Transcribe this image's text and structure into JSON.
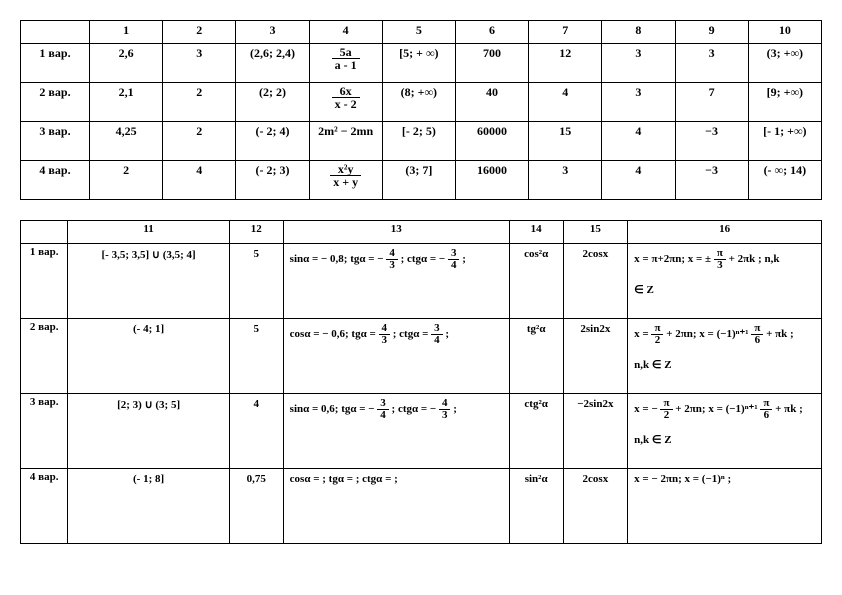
{
  "table1": {
    "headers": [
      "",
      "1",
      "2",
      "3",
      "4",
      "5",
      "6",
      "7",
      "8",
      "9",
      "10"
    ],
    "rows": [
      {
        "label": "1 вар.",
        "c1": "2,6",
        "c2": "3",
        "c3": "(2,6; 2,4)",
        "c4_num": "5a",
        "c4_den": "a - 1",
        "c5": "[5; + ∞)",
        "c6": "700",
        "c7": "12",
        "c8": "3",
        "c9": "3",
        "c10": "(3; +∞)"
      },
      {
        "label": "2 вар.",
        "c1": "2,1",
        "c2": "2",
        "c3": "(2; 2)",
        "c4_num": "6x",
        "c4_den": "x - 2",
        "c5": "(8; +∞)",
        "c6": "40",
        "c7": "4",
        "c8": "3",
        "c9": "7",
        "c10": "[9; +∞)"
      },
      {
        "label": "3 вар.",
        "c1": "4,25",
        "c2": "2",
        "c3": "(- 2; 4)",
        "c4_plain": "2m² − 2mn",
        "c5": "[- 2; 5)",
        "c6": "60000",
        "c7": "15",
        "c8": "4",
        "c9": "−3",
        "c10": "[- 1; +∞)"
      },
      {
        "label": "4 вар.",
        "c1": "2",
        "c2": "4",
        "c3": "(- 2; 3)",
        "c4_num": "x²y",
        "c4_den": "x + y",
        "c5": "(3; 7]",
        "c6": "16000",
        "c7": "3",
        "c8": "4",
        "c9": "−3",
        "c10": "(- ∞; 14)"
      }
    ]
  },
  "table2": {
    "headers": [
      "",
      "11",
      "12",
      "13",
      "14",
      "15",
      "16"
    ],
    "rows": [
      {
        "label": "1 вар.",
        "c11": "[- 3,5; 3,5] ∪ (3,5; 4]",
        "c12": "5",
        "c13_a": "sinα = − 0,8",
        "c13_b": "; tgα =",
        "c13_bn": "4",
        "c13_bd": "3",
        "c13_c": "; ctgα =",
        "c13_cn": "3",
        "c13_cd": "4",
        "c13_sign_b": "− ",
        "c13_sign_c": "− ",
        "c14": "cos²α",
        "c15": "2cosx",
        "c16_a": "x = π+2πn; x = ±",
        "c16_n": "π",
        "c16_d": "3",
        "c16_suf": " + 2πk",
        "c16_tail": "; n,k",
        "c16_z": "∈ Z"
      },
      {
        "label": "2 вар.",
        "c11": "(- 4; 1]",
        "c12": "5",
        "c13_a": "cosα = − 0,6",
        "c13_b": "; tgα =",
        "c13_bn": "4",
        "c13_bd": "3",
        "c13_c": "; ctgα =",
        "c13_cn": "3",
        "c13_cd": "4",
        "c13_sign_b": "",
        "c13_sign_c": "",
        "c14": "tg²α",
        "c15": "2sin2x",
        "c16_a": "x =",
        "c16_n": "π",
        "c16_d": "2",
        "c16_mid": " + 2πn; x = (−1)ⁿ⁺¹",
        "c16_n2": "π",
        "c16_d2": "6",
        "c16_suf": " + πk",
        "c16_tail": ";",
        "c16_z": "n,k ∈ Z"
      },
      {
        "label": "3 вар.",
        "c11": "[2; 3) ∪ (3; 5]",
        "c12": "4",
        "c13_a": "sinα = 0,6; tgα =",
        "c13_bn": "3",
        "c13_bd": "4",
        "c13_c": "; ctgα =",
        "c13_cn": "4",
        "c13_cd": "3",
        "c13_sign_b": "− ",
        "c13_sign_c": "− ",
        "c14": "ctg²α",
        "c15": "−2sin2x",
        "c16_a": "x = −",
        "c16_n": "π",
        "c16_d": "2",
        "c16_mid": " + 2πn; x = (−1)ⁿ⁺¹",
        "c16_n2": "π",
        "c16_d2": "6",
        "c16_suf": " + πk",
        "c16_tail": ";",
        "c16_z": "n,k ∈ Z"
      },
      {
        "label": "4 вар.",
        "c11": "(- 1; 8]",
        "c12": "0,75",
        "c13_a": "cosα =     ; tgα =     ; ctgα =     ;",
        "c14": "sin²α",
        "c15": "2cosx",
        "c16_a": "x = −     2πn; x = (−1)ⁿ     ;",
        "c16_z": ""
      }
    ]
  }
}
